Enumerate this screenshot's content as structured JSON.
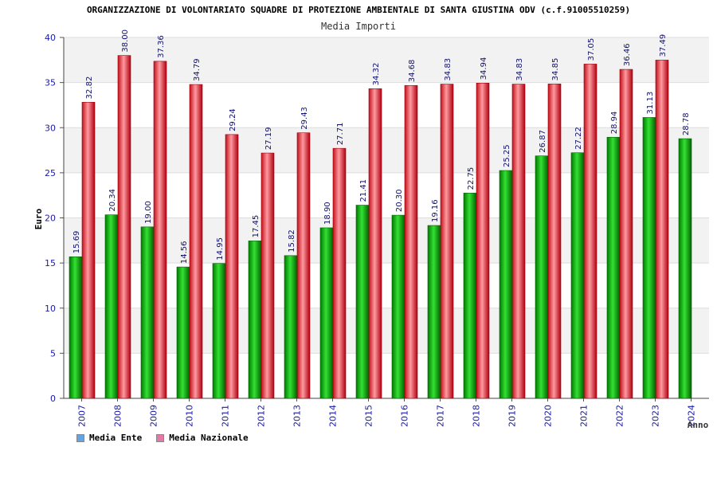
{
  "header": {
    "title": "ORGANIZZAZIONE DI VOLONTARIATO SQUADRE DI PROTEZIONE AMBIENTALE DI SANTA GIUSTINA ODV (c.f.91005510259)",
    "subtitle": "Media Importi"
  },
  "legend": {
    "items": [
      {
        "label": "Media Ente",
        "color": "#66a3e0"
      },
      {
        "label": "Media Nazionale",
        "color": "#e07aa8"
      }
    ]
  },
  "chart_data": {
    "type": "bar",
    "title": "Media Importi",
    "xlabel": "Anno",
    "ylabel": "Euro",
    "ylim": [
      0,
      40
    ],
    "yticks": [
      0,
      5,
      10,
      15,
      20,
      25,
      30,
      35,
      40
    ],
    "categories": [
      "2007",
      "2008",
      "2009",
      "2010",
      "2011",
      "2012",
      "2013",
      "2014",
      "2015",
      "2016",
      "2017",
      "2018",
      "2019",
      "2020",
      "2021",
      "2022",
      "2023",
      "2024"
    ],
    "series": [
      {
        "name": "Media Ente",
        "color": "#00b400",
        "values": [
          15.69,
          20.34,
          19.0,
          14.56,
          14.95,
          17.45,
          15.82,
          18.9,
          21.41,
          20.3,
          19.16,
          22.75,
          25.25,
          26.87,
          27.22,
          28.94,
          31.13,
          28.78
        ],
        "labels": [
          "15.69",
          "20.34",
          "19.00",
          "14.56",
          "14.95",
          "17.45",
          "15.82",
          "18.90",
          "21.41",
          "20.30",
          "19.16",
          "22.75",
          "25.25",
          "26.87",
          "27.22",
          "28.94",
          "31.13",
          "28.78"
        ]
      },
      {
        "name": "Media Nazionale",
        "color": "#e8202a",
        "values": [
          32.82,
          38.0,
          37.36,
          34.79,
          29.24,
          27.19,
          29.43,
          27.71,
          34.32,
          34.68,
          34.83,
          34.94,
          34.83,
          34.85,
          37.05,
          36.46,
          37.49,
          null
        ],
        "labels": [
          "32.82",
          "38.00",
          "37.36",
          "34.79",
          "29.24",
          "27.19",
          "29.43",
          "27.71",
          "34.32",
          "34.68",
          "34.83",
          "34.94",
          "34.83",
          "34.85",
          "37.05",
          "36.46",
          "37.49",
          ""
        ]
      }
    ]
  }
}
